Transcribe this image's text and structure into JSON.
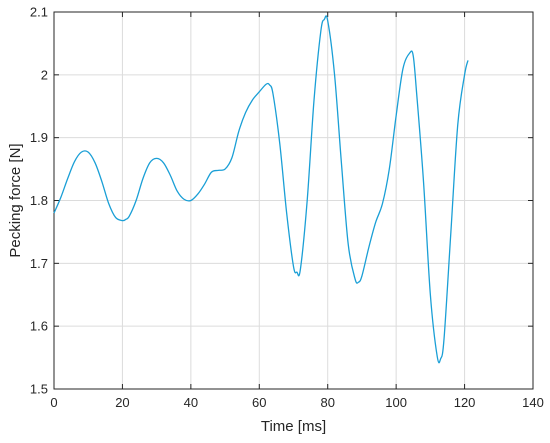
{
  "chart_data": {
    "type": "line",
    "title": "",
    "xlabel": "Time [ms]",
    "ylabel": "Pecking force [N]",
    "xlim": [
      0,
      140
    ],
    "ylim": [
      1.5,
      2.1
    ],
    "xticks": [
      0,
      20,
      40,
      60,
      80,
      100,
      120,
      140
    ],
    "yticks": [
      1.5,
      1.6,
      1.7,
      1.8,
      1.9,
      2.0,
      2.1
    ],
    "xtick_labels": [
      "0",
      "20",
      "40",
      "60",
      "80",
      "100",
      "120",
      "140"
    ],
    "ytick_labels": [
      "1.5",
      "1.6",
      "1.7",
      "1.8",
      "1.9",
      "2",
      "2.1"
    ],
    "grid": true,
    "series": [
      {
        "color": "#1a9fd6",
        "x": [
          0,
          2,
          4,
          6,
          8,
          10,
          12,
          14,
          16,
          18,
          20,
          21,
          22,
          24,
          26,
          28,
          30,
          32,
          34,
          36,
          38,
          40,
          42,
          44,
          46,
          48,
          50,
          52,
          54,
          56,
          58,
          60,
          62,
          63,
          64,
          66,
          68,
          70,
          71,
          72,
          74,
          76,
          78,
          79,
          80,
          82,
          84,
          86,
          88,
          89,
          90,
          92,
          94,
          96,
          98,
          100,
          102,
          104,
          105,
          106,
          108,
          110,
          112,
          113,
          114,
          116,
          118,
          120,
          121
        ],
        "y": [
          1.78,
          1.805,
          1.835,
          1.862,
          1.877,
          1.877,
          1.86,
          1.83,
          1.795,
          1.773,
          1.768,
          1.77,
          1.775,
          1.8,
          1.835,
          1.86,
          1.867,
          1.86,
          1.84,
          1.815,
          1.802,
          1.8,
          1.81,
          1.826,
          1.845,
          1.848,
          1.85,
          1.868,
          1.91,
          1.94,
          1.96,
          1.973,
          1.985,
          1.984,
          1.97,
          1.89,
          1.78,
          1.695,
          1.686,
          1.69,
          1.8,
          1.96,
          2.07,
          2.088,
          2.086,
          2.0,
          1.86,
          1.73,
          1.675,
          1.67,
          1.68,
          1.725,
          1.765,
          1.795,
          1.85,
          1.935,
          2.01,
          2.035,
          2.03,
          1.97,
          1.83,
          1.65,
          1.552,
          1.548,
          1.58,
          1.75,
          1.92,
          2.0,
          2.023
        ]
      }
    ]
  }
}
